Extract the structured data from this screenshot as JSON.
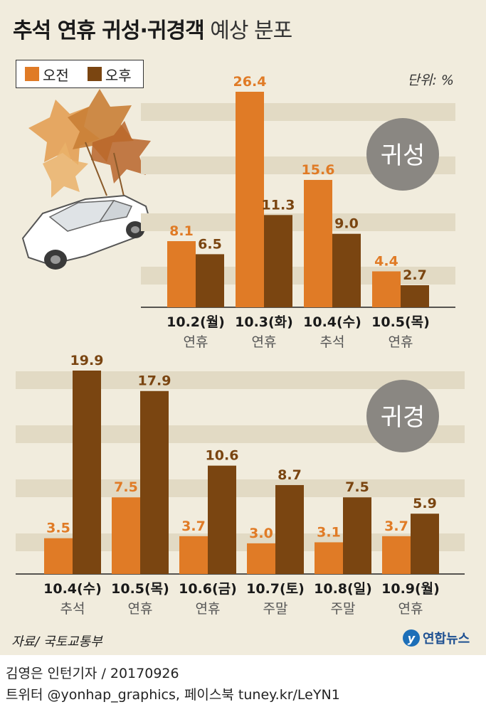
{
  "header": {
    "title_bold": "추석 연휴 귀성·귀경객",
    "title_light": "예상 분포",
    "unit": "단위: %"
  },
  "legend": {
    "items": [
      {
        "label": "오전",
        "color": "#e07b26"
      },
      {
        "label": "오후",
        "color": "#7a4511"
      }
    ]
  },
  "footer": {
    "source": "자료/ 국토교통부",
    "logo_text": "연합뉴스",
    "credit_line1": "김영은 인턴기자 / 20170926",
    "credit_line2": "트위터 @yonhap_graphics, 페이스북 tuney.kr/LeYN1"
  },
  "colors": {
    "am": "#e07b26",
    "pm": "#7a4511",
    "highlight_date": "#c1272d",
    "badge": "#8a8782"
  },
  "chart_data": [
    {
      "type": "bar",
      "title": "귀성",
      "categories": [
        "10.2(월)",
        "10.3(화)",
        "10.4(수)",
        "10.5(목)"
      ],
      "sublabels": [
        "연휴",
        "연휴",
        "추석",
        "연휴"
      ],
      "highlight_category": "10.4(수)",
      "series": [
        {
          "name": "오전",
          "values": [
            8.1,
            26.4,
            15.6,
            4.4
          ]
        },
        {
          "name": "오후",
          "values": [
            6.5,
            11.3,
            9.0,
            2.7
          ]
        }
      ],
      "value_labels": {
        "오전": [
          "8.1",
          "26.4",
          "15.6",
          "4.4"
        ],
        "오후": [
          "6.5",
          "11.3",
          "9.0",
          "2.7"
        ]
      },
      "ylim": [
        0,
        26.4
      ],
      "grid": "horizontal bands"
    },
    {
      "type": "bar",
      "title": "귀경",
      "categories": [
        "10.4(수)",
        "10.5(목)",
        "10.6(금)",
        "10.7(토)",
        "10.8(일)",
        "10.9(월)"
      ],
      "sublabels": [
        "추석",
        "연휴",
        "연휴",
        "주말",
        "주말",
        "연휴"
      ],
      "highlight_category": "10.4(수)",
      "series": [
        {
          "name": "오전",
          "values": [
            3.5,
            7.5,
            3.7,
            3.0,
            3.1,
            3.7
          ]
        },
        {
          "name": "오후",
          "values": [
            19.9,
            17.9,
            10.6,
            8.7,
            7.5,
            5.9
          ]
        }
      ],
      "value_labels": {
        "오전": [
          "3.5",
          "7.5",
          "3.7",
          "3.0",
          "3.1",
          "3.7"
        ],
        "오후": [
          "19.9",
          "17.9",
          "10.6",
          "8.7",
          "7.5",
          "5.9"
        ]
      },
      "ylim": [
        0,
        19.9
      ],
      "grid": "horizontal bands"
    }
  ]
}
